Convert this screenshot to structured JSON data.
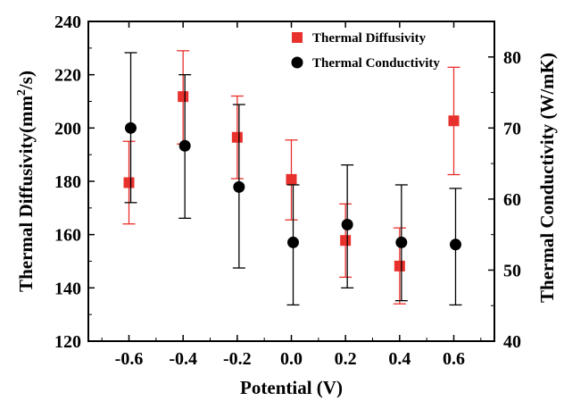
{
  "chart_data": {
    "type": "scatter",
    "x": [
      "-0.6",
      "-0.4",
      "-0.2",
      "0.0",
      "0.2",
      "0.4",
      "0.6"
    ],
    "xlabel": "Potential (V)",
    "xlim": [
      -0.75,
      0.75
    ],
    "ylabel_left": "Thermal Diffusivity(mm²/s)",
    "ylabel_left_parts": {
      "main": "Thermal Diffusivity(mm",
      "sup": "2",
      "tail": "/s)"
    },
    "ylim_left": [
      120,
      240
    ],
    "yticks_left": [
      120,
      140,
      160,
      180,
      200,
      220,
      240
    ],
    "ylabel_right": "Thermal Conductivity (W/mK)",
    "ylim_right": [
      40,
      85
    ],
    "yticks_right": [
      40,
      50,
      60,
      70,
      80
    ],
    "grid": false,
    "legend_position": "top-right",
    "series": [
      {
        "name": "Thermal Diffusivity",
        "axis": "left",
        "marker": "square",
        "color": "#e8302c",
        "errorbar_color": "#e8302c",
        "x": [
          -0.6,
          -0.4,
          -0.2,
          0.0,
          0.2,
          0.4,
          0.6
        ],
        "values": [
          179.5,
          211.8,
          196.5,
          180.7,
          157.8,
          148.2,
          202.7
        ],
        "err_low": [
          164.0,
          194.0,
          181.0,
          165.5,
          144.0,
          134.0,
          182.5
        ],
        "err_high": [
          195.0,
          229.0,
          212.0,
          195.5,
          171.5,
          162.5,
          222.8
        ]
      },
      {
        "name": "Thermal Conductivity",
        "axis": "right",
        "marker": "circle",
        "color": "#000000",
        "errorbar_color": "#000000",
        "x": [
          -0.6,
          -0.4,
          -0.2,
          0.0,
          0.2,
          0.4,
          0.6
        ],
        "values": [
          70.0,
          67.5,
          61.7,
          53.9,
          56.4,
          53.9,
          53.6
        ],
        "err_low": [
          59.5,
          57.3,
          50.3,
          45.1,
          47.5,
          45.7,
          45.1
        ],
        "err_high": [
          80.6,
          77.5,
          73.3,
          62.0,
          64.8,
          62.0,
          61.5
        ]
      }
    ]
  }
}
